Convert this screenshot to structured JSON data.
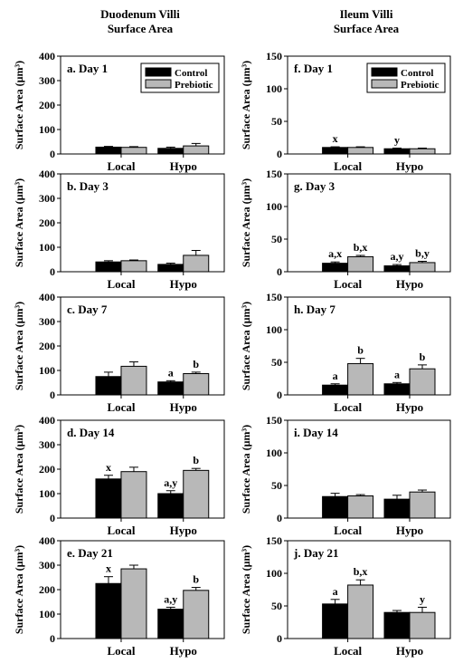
{
  "figure": {
    "columns": [
      {
        "title_line1": "Duodenum Villi",
        "title_line2": "Surface Area"
      },
      {
        "title_line1": "Ileum Villi",
        "title_line2": "Surface Area"
      }
    ],
    "colors": {
      "control": "#000000",
      "prebiotic": "#b8b8b8"
    }
  },
  "chart_data": [
    {
      "type": "bar",
      "panel": "a. Day 1",
      "ylabel": "Surface Area (µm³)",
      "ylim": [
        0,
        400
      ],
      "yticks": [
        0,
        100,
        200,
        300,
        400
      ],
      "categories": [
        "Local",
        "Hypo"
      ],
      "legend": [
        "Control",
        "Prebiotic"
      ],
      "series": [
        {
          "name": "Control",
          "values": [
            28,
            23
          ],
          "errors": [
            3,
            5
          ],
          "labels": [
            "",
            ""
          ]
        },
        {
          "name": "Prebiotic",
          "values": [
            27,
            33
          ],
          "errors": [
            3,
            10
          ],
          "labels": [
            "",
            ""
          ]
        }
      ]
    },
    {
      "type": "bar",
      "panel": "b. Day 3",
      "ylabel": "Surface Area (µm³)",
      "ylim": [
        0,
        400
      ],
      "yticks": [
        0,
        100,
        200,
        300,
        400
      ],
      "categories": [
        "Local",
        "Hypo"
      ],
      "series": [
        {
          "name": "Control",
          "values": [
            40,
            30
          ],
          "errors": [
            5,
            5
          ],
          "labels": [
            "",
            ""
          ]
        },
        {
          "name": "Prebiotic",
          "values": [
            45,
            67
          ],
          "errors": [
            3,
            20
          ],
          "labels": [
            "",
            ""
          ]
        }
      ]
    },
    {
      "type": "bar",
      "panel": "c. Day 7",
      "ylabel": "Surface Area (µm³)",
      "ylim": [
        0,
        400
      ],
      "yticks": [
        0,
        100,
        200,
        300,
        400
      ],
      "categories": [
        "Local",
        "Hypo"
      ],
      "series": [
        {
          "name": "Control",
          "values": [
            75,
            53
          ],
          "errors": [
            18,
            5
          ],
          "labels": [
            "",
            "a"
          ]
        },
        {
          "name": "Prebiotic",
          "values": [
            117,
            87
          ],
          "errors": [
            18,
            6
          ],
          "labels": [
            "",
            "b"
          ]
        }
      ]
    },
    {
      "type": "bar",
      "panel": "d. Day 14",
      "ylabel": "Surface Area (µm³)",
      "ylim": [
        0,
        400
      ],
      "yticks": [
        0,
        100,
        200,
        300,
        400
      ],
      "categories": [
        "Local",
        "Hypo"
      ],
      "series": [
        {
          "name": "Control",
          "values": [
            160,
            100
          ],
          "errors": [
            15,
            12
          ],
          "labels": [
            "x",
            "a,y"
          ]
        },
        {
          "name": "Prebiotic",
          "values": [
            190,
            195
          ],
          "errors": [
            18,
            8
          ],
          "labels": [
            "",
            "b"
          ]
        }
      ]
    },
    {
      "type": "bar",
      "panel": "e. Day 21",
      "ylabel": "Surface Area (µm³)",
      "ylim": [
        0,
        400
      ],
      "yticks": [
        0,
        100,
        200,
        300,
        400
      ],
      "categories": [
        "Local",
        "Hypo"
      ],
      "series": [
        {
          "name": "Control",
          "values": [
            225,
            120
          ],
          "errors": [
            28,
            8
          ],
          "labels": [
            "x",
            "a,y"
          ]
        },
        {
          "name": "Prebiotic",
          "values": [
            285,
            197
          ],
          "errors": [
            15,
            12
          ],
          "labels": [
            "",
            "b"
          ]
        }
      ]
    },
    {
      "type": "bar",
      "panel": "f. Day 1",
      "ylabel": "Surface Area (µm³)",
      "ylim": [
        0,
        150
      ],
      "yticks": [
        0,
        50,
        100,
        150
      ],
      "categories": [
        "Local",
        "Hypo"
      ],
      "legend": [
        "Control",
        "Prebiotic"
      ],
      "series": [
        {
          "name": "Control",
          "values": [
            10,
            8
          ],
          "errors": [
            1,
            1
          ],
          "labels": [
            "x",
            "y"
          ]
        },
        {
          "name": "Prebiotic",
          "values": [
            10,
            8
          ],
          "errors": [
            1,
            1
          ],
          "labels": [
            "",
            ""
          ]
        }
      ]
    },
    {
      "type": "bar",
      "panel": "g. Day 3",
      "ylabel": "Surface Area (µm³)",
      "ylim": [
        0,
        150
      ],
      "yticks": [
        0,
        50,
        100,
        150
      ],
      "categories": [
        "Local",
        "Hypo"
      ],
      "series": [
        {
          "name": "Control",
          "values": [
            13,
            9
          ],
          "errors": [
            2,
            2
          ],
          "labels": [
            "a,x",
            "a,y"
          ]
        },
        {
          "name": "Prebiotic",
          "values": [
            23,
            14
          ],
          "errors": [
            2,
            2
          ],
          "labels": [
            "b,x",
            "b,y"
          ]
        }
      ]
    },
    {
      "type": "bar",
      "panel": "h. Day 7",
      "ylabel": "Surface Area (µm³)",
      "ylim": [
        0,
        150
      ],
      "yticks": [
        0,
        50,
        100,
        150
      ],
      "categories": [
        "Local",
        "Hypo"
      ],
      "series": [
        {
          "name": "Control",
          "values": [
            15,
            17
          ],
          "errors": [
            2,
            2
          ],
          "labels": [
            "a",
            "a"
          ]
        },
        {
          "name": "Prebiotic",
          "values": [
            48,
            40
          ],
          "errors": [
            8,
            6
          ],
          "labels": [
            "b",
            "b"
          ]
        }
      ]
    },
    {
      "type": "bar",
      "panel": "i. Day 14",
      "ylabel": "Surface Area (µm³)",
      "ylim": [
        0,
        150
      ],
      "yticks": [
        0,
        50,
        100,
        150
      ],
      "categories": [
        "Local",
        "Hypo"
      ],
      "series": [
        {
          "name": "Control",
          "values": [
            33,
            29
          ],
          "errors": [
            5,
            6
          ],
          "labels": [
            "",
            ""
          ]
        },
        {
          "name": "Prebiotic",
          "values": [
            34,
            40
          ],
          "errors": [
            2,
            3
          ],
          "labels": [
            "",
            ""
          ]
        }
      ]
    },
    {
      "type": "bar",
      "panel": "j. Day 21",
      "ylabel": "Surface Area (µm³)",
      "ylim": [
        0,
        150
      ],
      "yticks": [
        0,
        50,
        100,
        150
      ],
      "categories": [
        "Local",
        "Hypo"
      ],
      "series": [
        {
          "name": "Control",
          "values": [
            53,
            40
          ],
          "errors": [
            7,
            3
          ],
          "labels": [
            "a",
            ""
          ]
        },
        {
          "name": "Prebiotic",
          "values": [
            82,
            40
          ],
          "errors": [
            8,
            8
          ],
          "labels": [
            "b,x",
            "y"
          ]
        }
      ]
    }
  ]
}
